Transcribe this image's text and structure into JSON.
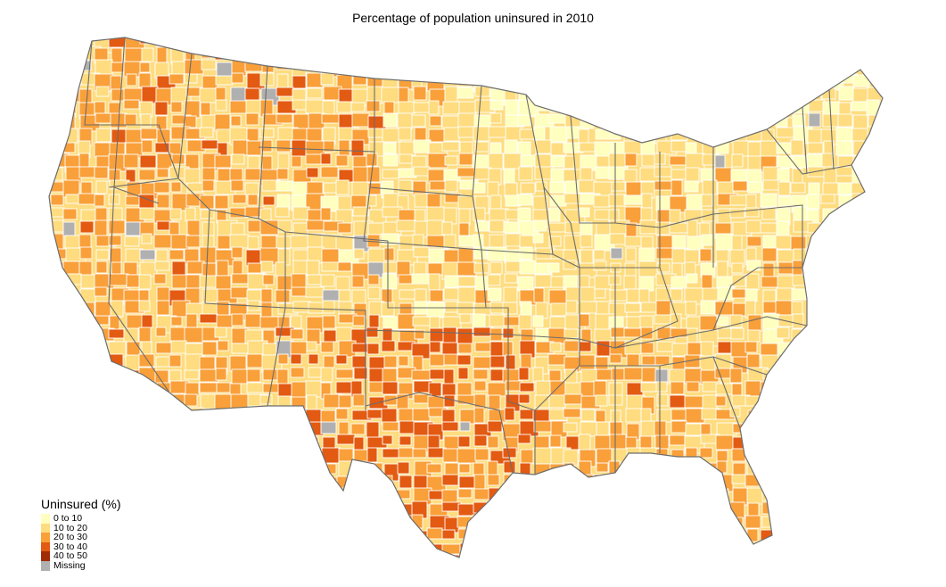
{
  "title": "Percentage of population uninsured in 2010",
  "legend": {
    "title": "Uninsured (%)",
    "items": [
      {
        "label": "0 to 10",
        "color": "#ffffbf"
      },
      {
        "label": "10 to 20",
        "color": "#fedc7f"
      },
      {
        "label": "20 to 30",
        "color": "#f9a03a"
      },
      {
        "label": "30 to 40",
        "color": "#e35a12"
      },
      {
        "label": "40 to 50",
        "color": "#a02d06"
      },
      {
        "label": "Missing",
        "color": "#b0b0b0"
      }
    ]
  },
  "map": {
    "county_border_color": "#ffffff",
    "state_border_color": "#6d6d6d"
  }
}
